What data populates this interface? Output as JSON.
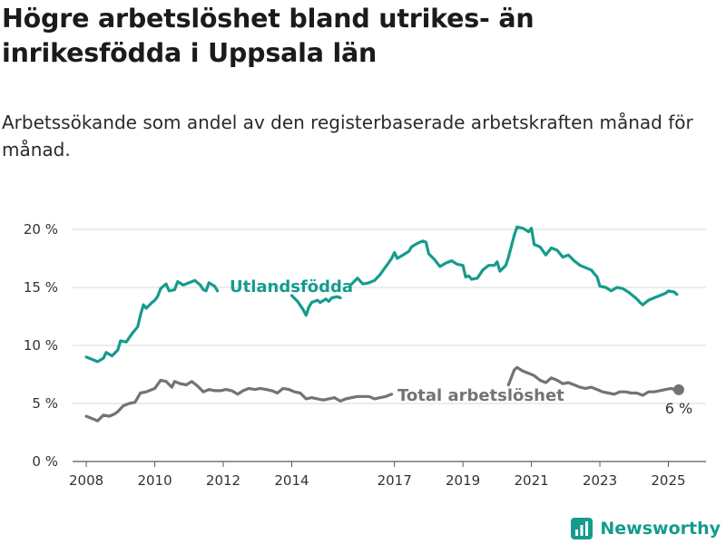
{
  "title": "Högre arbetslöshet bland utrikes- än inrikesfödda i Uppsala län",
  "subtitle": "Arbetssökande som andel av den registerbaserade arbetskraften månad för månad.",
  "brand": {
    "name": "Newsworthy",
    "icon": "bar-chart-icon",
    "color": "#159b8d"
  },
  "chart_data": {
    "type": "line",
    "title": "Högre arbetslöshet bland utrikes- än inrikesfödda i Uppsala län",
    "subtitle": "Arbetssökande som andel av den registerbaserade arbetskraften månad för månad.",
    "xlabel": "",
    "ylabel": "",
    "xlim": [
      2007.6,
      2026.1
    ],
    "ylim": [
      0,
      20
    ],
    "y_ticks": [
      0,
      5,
      10,
      15,
      20
    ],
    "y_tick_labels": [
      "0 %",
      "5 %",
      "10 %",
      "15 %",
      "20 %"
    ],
    "x_ticks": [
      2008,
      2010,
      2012,
      2014,
      2017,
      2019,
      2021,
      2023,
      2025
    ],
    "x_tick_labels": [
      "2008",
      "2010",
      "2012",
      "2014",
      "2017",
      "2019",
      "2021",
      "2023",
      "2025"
    ],
    "grid": "horizontal",
    "legend": "inline labels",
    "end_label": "6 %",
    "series": [
      {
        "name": "Utlandsfödda",
        "color": "#159b8d",
        "segments": [
          [
            [
              2008.0,
              9.0
            ],
            [
              2008.17,
              8.8
            ],
            [
              2008.33,
              8.6
            ],
            [
              2008.5,
              8.9
            ],
            [
              2008.58,
              9.4
            ],
            [
              2008.75,
              9.1
            ],
            [
              2008.92,
              9.6
            ],
            [
              2009.0,
              10.4
            ],
            [
              2009.17,
              10.3
            ],
            [
              2009.33,
              11.0
            ],
            [
              2009.5,
              11.6
            ],
            [
              2009.58,
              12.6
            ],
            [
              2009.67,
              13.5
            ],
            [
              2009.75,
              13.2
            ],
            [
              2009.92,
              13.7
            ],
            [
              2010.0,
              13.9
            ],
            [
              2010.08,
              14.2
            ],
            [
              2010.17,
              14.9
            ],
            [
              2010.33,
              15.3
            ],
            [
              2010.42,
              14.7
            ],
            [
              2010.58,
              14.8
            ],
            [
              2010.67,
              15.5
            ],
            [
              2010.83,
              15.2
            ],
            [
              2011.0,
              15.4
            ],
            [
              2011.17,
              15.6
            ],
            [
              2011.33,
              15.2
            ],
            [
              2011.42,
              14.8
            ],
            [
              2011.5,
              14.7
            ],
            [
              2011.58,
              15.4
            ],
            [
              2011.75,
              15.1
            ],
            [
              2011.83,
              14.7
            ]
          ],
          [
            [
              2014.0,
              14.3
            ],
            [
              2014.17,
              13.8
            ],
            [
              2014.33,
              13.1
            ],
            [
              2014.42,
              12.6
            ],
            [
              2014.5,
              13.3
            ],
            [
              2014.58,
              13.7
            ],
            [
              2014.75,
              13.9
            ],
            [
              2014.83,
              13.7
            ],
            [
              2015.0,
              14.0
            ],
            [
              2015.08,
              13.8
            ],
            [
              2015.17,
              14.1
            ],
            [
              2015.33,
              14.2
            ],
            [
              2015.42,
              14.1
            ]
          ],
          [
            [
              2015.75,
              15.3
            ],
            [
              2015.92,
              15.8
            ],
            [
              2016.08,
              15.3
            ],
            [
              2016.25,
              15.4
            ],
            [
              2016.42,
              15.6
            ],
            [
              2016.58,
              16.1
            ],
            [
              2016.75,
              16.8
            ],
            [
              2016.92,
              17.5
            ],
            [
              2017.0,
              18.0
            ],
            [
              2017.08,
              17.5
            ],
            [
              2017.25,
              17.8
            ],
            [
              2017.42,
              18.1
            ],
            [
              2017.5,
              18.5
            ],
            [
              2017.67,
              18.8
            ],
            [
              2017.83,
              19.0
            ],
            [
              2017.92,
              18.9
            ],
            [
              2018.0,
              17.9
            ],
            [
              2018.17,
              17.4
            ],
            [
              2018.33,
              16.8
            ],
            [
              2018.5,
              17.1
            ],
            [
              2018.67,
              17.3
            ],
            [
              2018.83,
              17.0
            ],
            [
              2019.0,
              16.9
            ],
            [
              2019.08,
              15.9
            ],
            [
              2019.17,
              16.0
            ],
            [
              2019.25,
              15.7
            ],
            [
              2019.42,
              15.8
            ],
            [
              2019.58,
              16.5
            ],
            [
              2019.75,
              16.9
            ],
            [
              2019.92,
              16.9
            ],
            [
              2020.0,
              17.2
            ],
            [
              2020.08,
              16.4
            ],
            [
              2020.25,
              16.9
            ],
            [
              2020.33,
              17.6
            ],
            [
              2020.5,
              19.5
            ],
            [
              2020.58,
              20.2
            ],
            [
              2020.75,
              20.1
            ],
            [
              2020.92,
              19.8
            ],
            [
              2021.0,
              20.1
            ],
            [
              2021.08,
              18.7
            ],
            [
              2021.25,
              18.5
            ],
            [
              2021.42,
              17.8
            ],
            [
              2021.58,
              18.4
            ],
            [
              2021.75,
              18.2
            ],
            [
              2021.92,
              17.6
            ],
            [
              2022.08,
              17.8
            ],
            [
              2022.25,
              17.3
            ],
            [
              2022.42,
              16.9
            ],
            [
              2022.58,
              16.7
            ],
            [
              2022.75,
              16.5
            ],
            [
              2022.83,
              16.2
            ],
            [
              2022.92,
              15.9
            ],
            [
              2023.0,
              15.1
            ],
            [
              2023.17,
              15.0
            ],
            [
              2023.33,
              14.7
            ],
            [
              2023.5,
              15.0
            ],
            [
              2023.67,
              14.9
            ],
            [
              2023.83,
              14.6
            ],
            [
              2024.0,
              14.2
            ],
            [
              2024.08,
              14.0
            ],
            [
              2024.17,
              13.7
            ],
            [
              2024.25,
              13.5
            ],
            [
              2024.42,
              13.9
            ],
            [
              2024.58,
              14.1
            ],
            [
              2024.75,
              14.3
            ],
            [
              2024.92,
              14.5
            ],
            [
              2025.0,
              14.7
            ],
            [
              2025.17,
              14.6
            ],
            [
              2025.25,
              14.4
            ]
          ]
        ]
      },
      {
        "name": "Total arbetslöshet",
        "color": "#737375",
        "segments": [
          [
            [
              2008.0,
              3.9
            ],
            [
              2008.17,
              3.7
            ],
            [
              2008.33,
              3.5
            ],
            [
              2008.5,
              4.0
            ],
            [
              2008.67,
              3.9
            ],
            [
              2008.83,
              4.1
            ],
            [
              2008.92,
              4.3
            ],
            [
              2009.08,
              4.8
            ],
            [
              2009.25,
              5.0
            ],
            [
              2009.42,
              5.1
            ],
            [
              2009.58,
              5.9
            ],
            [
              2009.75,
              6.0
            ],
            [
              2009.92,
              6.2
            ],
            [
              2010.0,
              6.3
            ],
            [
              2010.17,
              7.0
            ],
            [
              2010.33,
              6.9
            ],
            [
              2010.5,
              6.4
            ],
            [
              2010.58,
              6.9
            ],
            [
              2010.75,
              6.7
            ],
            [
              2010.92,
              6.6
            ],
            [
              2011.08,
              6.9
            ],
            [
              2011.25,
              6.5
            ],
            [
              2011.42,
              6.0
            ],
            [
              2011.58,
              6.2
            ],
            [
              2011.75,
              6.1
            ],
            [
              2011.92,
              6.1
            ],
            [
              2012.08,
              6.2
            ],
            [
              2012.25,
              6.1
            ],
            [
              2012.42,
              5.8
            ],
            [
              2012.58,
              6.1
            ],
            [
              2012.75,
              6.3
            ],
            [
              2012.92,
              6.2
            ],
            [
              2013.08,
              6.3
            ],
            [
              2013.25,
              6.2
            ],
            [
              2013.42,
              6.1
            ],
            [
              2013.58,
              5.9
            ],
            [
              2013.75,
              6.3
            ],
            [
              2013.92,
              6.2
            ],
            [
              2014.08,
              6.0
            ],
            [
              2014.25,
              5.9
            ],
            [
              2014.42,
              5.4
            ],
            [
              2014.58,
              5.5
            ],
            [
              2014.75,
              5.4
            ],
            [
              2014.92,
              5.3
            ],
            [
              2015.08,
              5.4
            ],
            [
              2015.25,
              5.5
            ],
            [
              2015.42,
              5.2
            ],
            [
              2015.58,
              5.4
            ],
            [
              2015.75,
              5.5
            ],
            [
              2015.92,
              5.6
            ],
            [
              2016.08,
              5.6
            ],
            [
              2016.25,
              5.6
            ],
            [
              2016.42,
              5.4
            ],
            [
              2016.58,
              5.5
            ],
            [
              2016.75,
              5.6
            ],
            [
              2016.92,
              5.8
            ]
          ],
          [
            [
              2020.33,
              6.6
            ],
            [
              2020.5,
              7.9
            ],
            [
              2020.58,
              8.1
            ],
            [
              2020.75,
              7.8
            ],
            [
              2020.92,
              7.6
            ],
            [
              2021.08,
              7.4
            ],
            [
              2021.25,
              7.0
            ],
            [
              2021.42,
              6.8
            ],
            [
              2021.58,
              7.2
            ],
            [
              2021.75,
              7.0
            ],
            [
              2021.92,
              6.7
            ],
            [
              2022.08,
              6.8
            ],
            [
              2022.25,
              6.6
            ],
            [
              2022.42,
              6.4
            ],
            [
              2022.58,
              6.3
            ],
            [
              2022.75,
              6.4
            ],
            [
              2022.92,
              6.2
            ],
            [
              2023.08,
              6.0
            ],
            [
              2023.25,
              5.9
            ],
            [
              2023.42,
              5.8
            ],
            [
              2023.58,
              6.0
            ],
            [
              2023.75,
              6.0
            ],
            [
              2023.92,
              5.9
            ],
            [
              2024.08,
              5.9
            ],
            [
              2024.25,
              5.7
            ],
            [
              2024.42,
              6.0
            ],
            [
              2024.58,
              6.0
            ],
            [
              2024.75,
              6.1
            ],
            [
              2024.92,
              6.2
            ],
            [
              2025.08,
              6.3
            ],
            [
              2025.25,
              6.1
            ]
          ]
        ]
      }
    ]
  }
}
